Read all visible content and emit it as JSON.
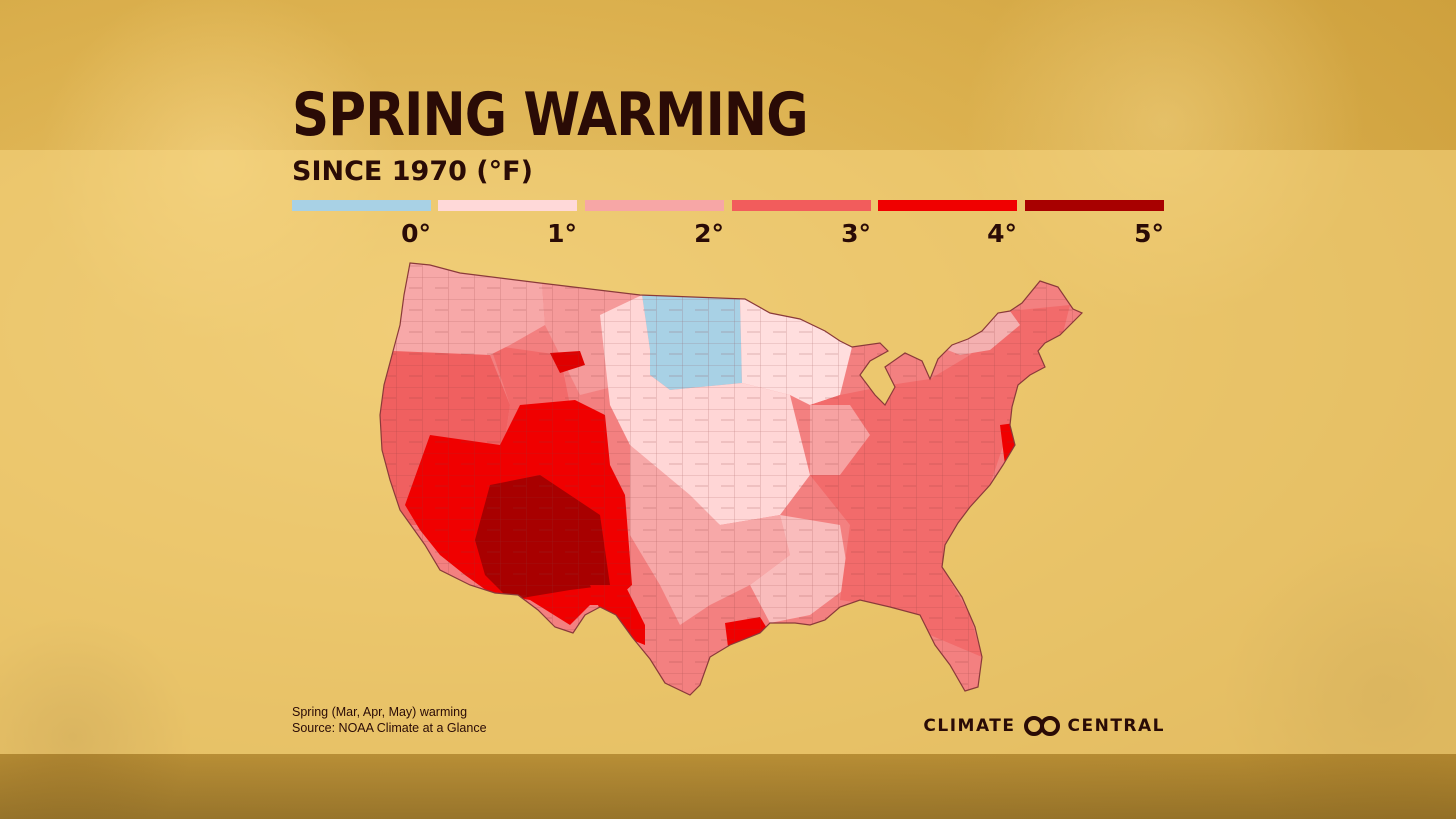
{
  "title": "SPRING WARMING",
  "subtitle": "SINCE 1970 (°F)",
  "legend": {
    "colors": [
      "#a8d1e5",
      "#ffd9d9",
      "#f7a6a6",
      "#f25c5c",
      "#f00000",
      "#a80000"
    ],
    "ticks": [
      "0°",
      "1°",
      "2°",
      "3°",
      "4°",
      "5°"
    ]
  },
  "source": {
    "line1": "Spring (Mar, Apr, May) warming",
    "line2": "Source: NOAA Climate at a Glance"
  },
  "brand": {
    "left": "CLIMATE",
    "right": "CENTRAL",
    "icon": "climate-central-logo-icon"
  },
  "map_colors": {
    "border": "#7a2a2a",
    "outline": "#8a3a3a"
  }
}
